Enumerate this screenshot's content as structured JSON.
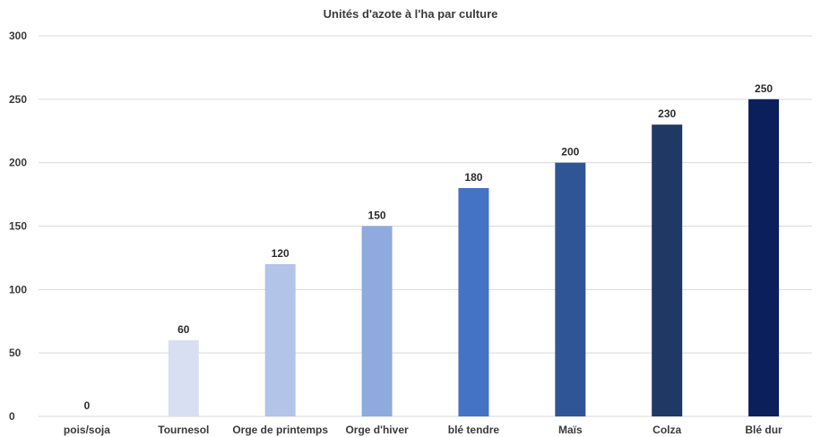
{
  "chart_data": {
    "type": "bar",
    "title": "Unités d'azote à l'ha par culture",
    "categories": [
      "pois/soja",
      "Tournesol",
      "Orge de printemps",
      "Orge d'hiver",
      "blé tendre",
      "Maïs",
      "Colza",
      "Blé dur"
    ],
    "values": [
      0,
      60,
      120,
      150,
      180,
      200,
      230,
      250
    ],
    "colors": [
      "#e6eaf7",
      "#d9dff2",
      "#b2c4e8",
      "#8eaadf",
      "#4472c4",
      "#2f5597",
      "#1f3864",
      "#0a1f5c"
    ],
    "ylim": [
      0,
      300
    ],
    "yticks": [
      0,
      50,
      100,
      150,
      200,
      250,
      300
    ],
    "grid": true,
    "legend": "none",
    "data_labels": true
  }
}
